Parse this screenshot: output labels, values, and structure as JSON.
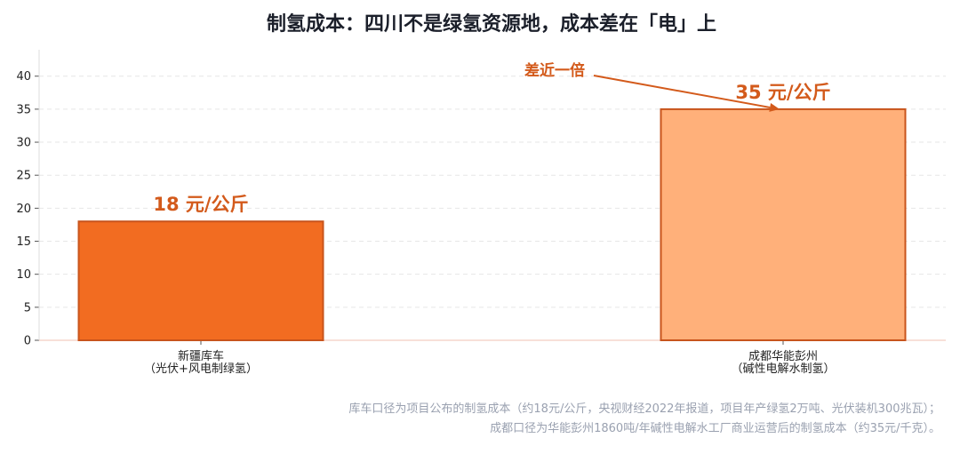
{
  "chart_data": {
    "type": "bar",
    "title": "制氢成本：四川不是绿氢资源地，成本差在「电」上",
    "categories": [
      {
        "line1": "新疆库车",
        "line2": "（光伏+风电制绿氢）"
      },
      {
        "line1": "成都华能彭州",
        "line2": "（碱性电解水制氢）"
      }
    ],
    "values": [
      18,
      35
    ],
    "value_labels": [
      "18 元/公斤",
      "35 元/公斤"
    ],
    "bar_colors": [
      "#f26c21",
      "#ffb07a"
    ],
    "bar_edge_color": "#c8541c",
    "ylim": [
      0,
      44
    ],
    "yticks": [
      0,
      5,
      10,
      15,
      20,
      25,
      30,
      35,
      40
    ],
    "grid": true,
    "annotation": {
      "text": "差近一倍",
      "points_to_category": 1
    }
  },
  "footnotes": [
    "库车口径为项目公布的制氢成本（约18元/公斤，央视财经2022年报道，项目年产绿氢2万吨、光伏装机300兆瓦）；",
    "成都口径为华能彭州1860吨/年碱性电解水工厂商业运营后的制氢成本（约35元/千克）。"
  ],
  "colors": {
    "accent": "#d35a1b",
    "title": "#1b1f2a",
    "footnote": "#9aa1b0"
  }
}
